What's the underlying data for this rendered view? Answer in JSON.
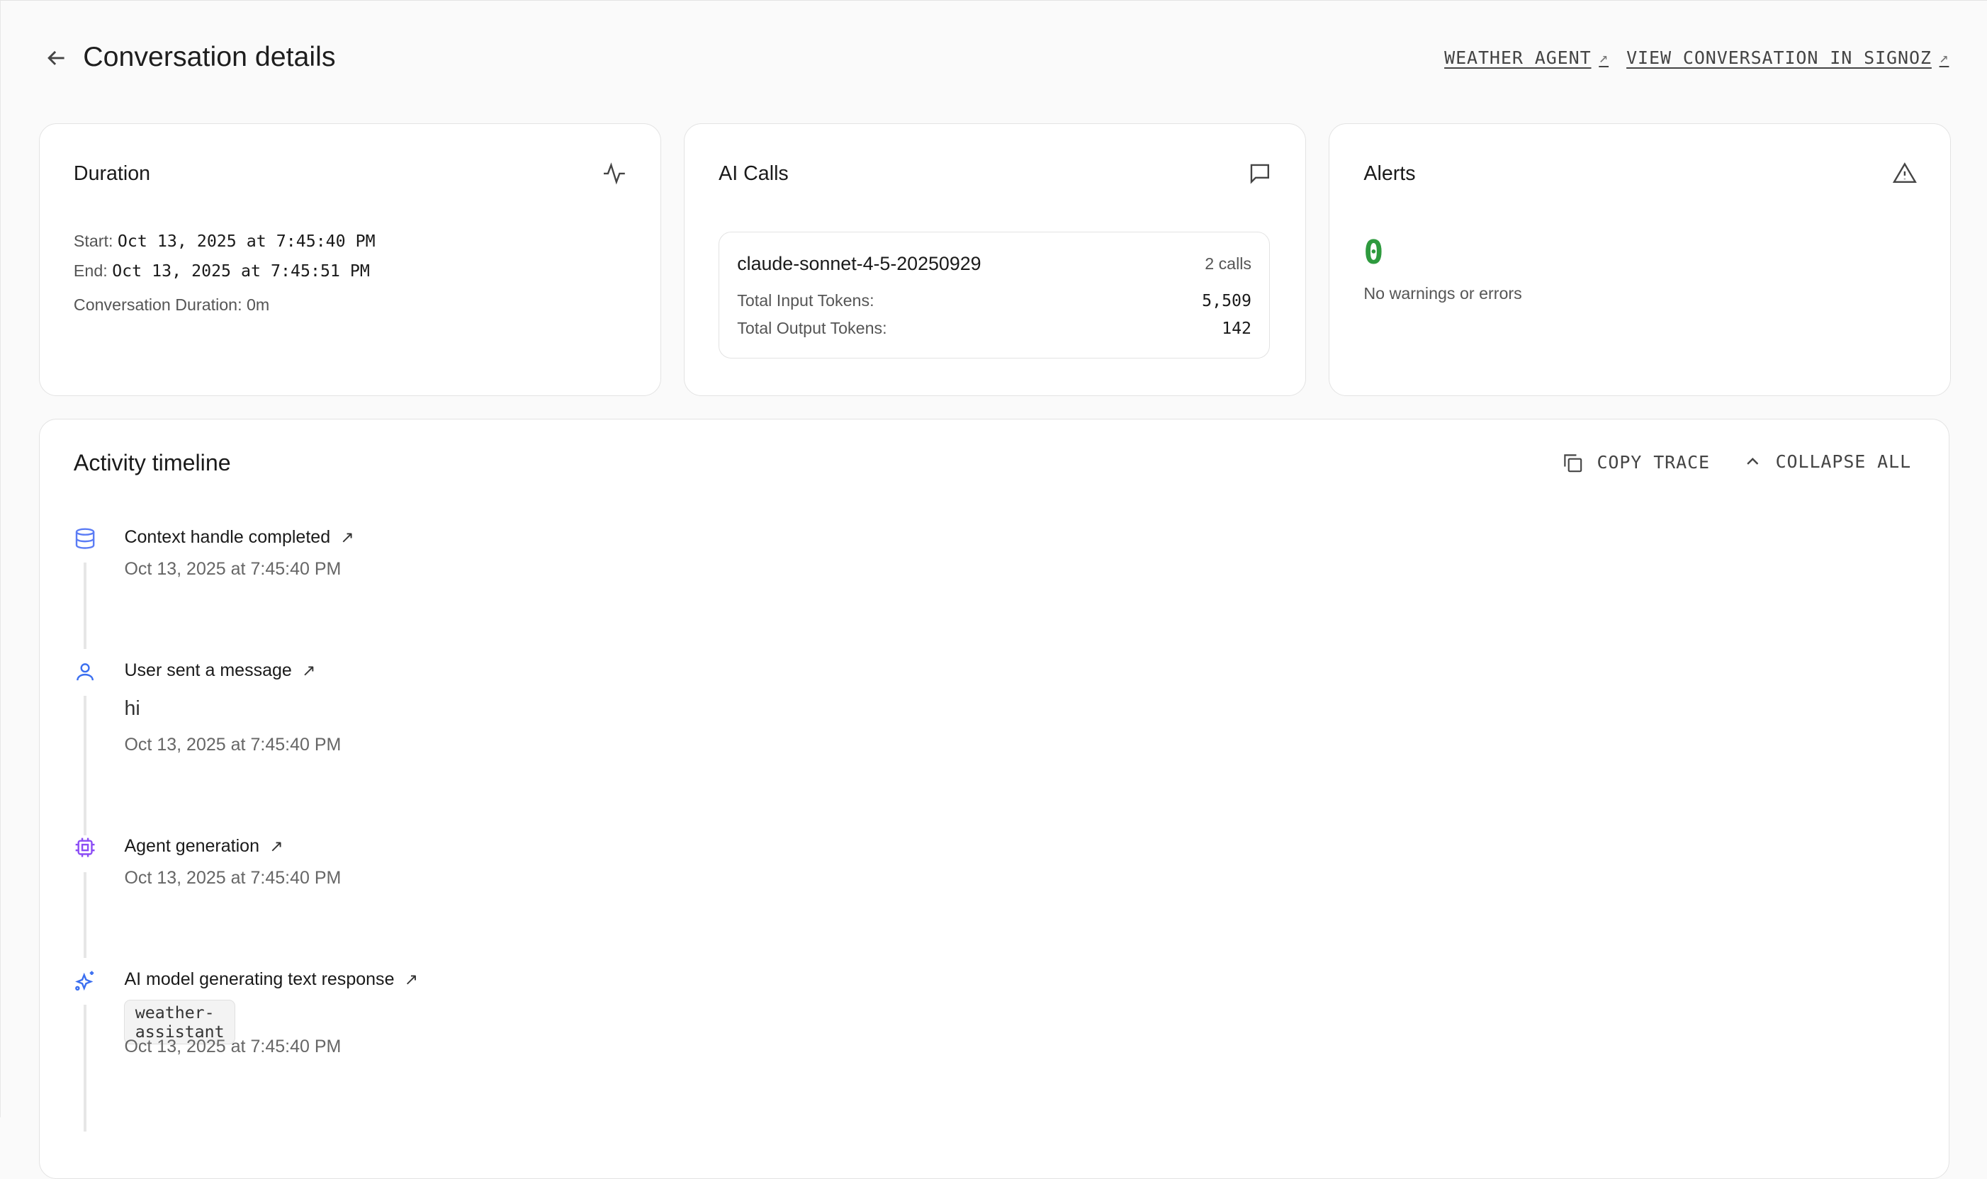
{
  "header": {
    "title": "Conversation details",
    "links": [
      {
        "label": "WEATHER AGENT"
      },
      {
        "label": "VIEW CONVERSATION IN SIGNOZ"
      }
    ]
  },
  "duration": {
    "title": "Duration",
    "start_label": "Start:",
    "start": "Oct 13, 2025 at 7:45:40 PM",
    "end_label": "End:",
    "end": "Oct 13, 2025 at 7:45:51 PM",
    "duration_text": "Conversation Duration: 0m"
  },
  "ai_calls": {
    "title": "AI Calls",
    "model": "claude-sonnet-4-5-20250929",
    "calls": "2 calls",
    "input_label": "Total Input Tokens:",
    "input": "5,509",
    "output_label": "Total Output Tokens:",
    "output": "142"
  },
  "alerts": {
    "title": "Alerts",
    "count": "0",
    "message": "No warnings or errors",
    "count_color": "#2e9a3e"
  },
  "timeline": {
    "title": "Activity timeline",
    "copy_label": "COPY TRACE",
    "collapse_label": "COLLAPSE ALL",
    "events": [
      {
        "title": "Context handle completed",
        "time": "Oct 13, 2025 at 7:45:40 PM",
        "icon": "database-icon",
        "color": "#5b7cf5"
      },
      {
        "title": "User sent a message",
        "message": "hi",
        "time": "Oct 13, 2025 at 7:45:40 PM",
        "icon": "user-icon",
        "color": "#3b6ff0"
      },
      {
        "title": "Agent generation",
        "time": "Oct 13, 2025 at 7:45:40 PM",
        "icon": "cpu-icon",
        "color": "#8b4cf5"
      },
      {
        "title": "AI model generating text response",
        "tag": "weather-assistant",
        "time": "Oct 13, 2025 at 7:45:40 PM",
        "icon": "sparkles-icon",
        "color": "#3b6ff0"
      }
    ]
  }
}
